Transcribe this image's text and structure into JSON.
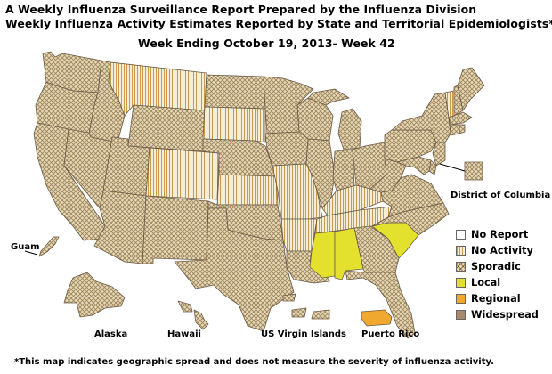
{
  "header": {
    "line1": "A Weekly Influenza Surveillance Report Prepared by the Influenza Division",
    "line2": "Weekly Influenza Activity Estimates Reported by State and Territorial Epidemiologists*",
    "week": "Week Ending October 19, 2013- Week 42"
  },
  "colors": {
    "no_report": "#ffffff",
    "no_activity": "#d7c9a3",
    "sporadic": "#d7c9a3",
    "local": "#e3e12e",
    "regional": "#f0a830",
    "widespread": "#a8896a",
    "border": "#5a4a3a"
  },
  "legend": [
    {
      "key": "no_report",
      "label": "No Report"
    },
    {
      "key": "no_activity",
      "label": "No Activity"
    },
    {
      "key": "sporadic",
      "label": "Sporadic"
    },
    {
      "key": "local",
      "label": "Local"
    },
    {
      "key": "regional",
      "label": "Regional"
    },
    {
      "key": "widespread",
      "label": "Widespread"
    }
  ],
  "states": {
    "WA": "sporadic",
    "OR": "sporadic",
    "CA": "sporadic",
    "NV": "sporadic",
    "ID": "sporadic",
    "MT": "no_activity",
    "WY": "sporadic",
    "UT": "sporadic",
    "AZ": "sporadic",
    "CO": "no_activity",
    "NM": "sporadic",
    "ND": "sporadic",
    "SD": "no_activity",
    "NE": "sporadic",
    "KS": "no_activity",
    "OK": "sporadic",
    "TX": "sporadic",
    "MN": "sporadic",
    "IA": "sporadic",
    "MO": "no_activity",
    "AR": "no_activity",
    "LA": "sporadic",
    "WI": "sporadic",
    "IL": "sporadic",
    "MI": "sporadic",
    "IN": "sporadic",
    "OH": "sporadic",
    "KY": "no_activity",
    "TN": "no_activity",
    "MS": "local",
    "AL": "local",
    "GA": "sporadic",
    "FL": "sporadic",
    "SC": "local",
    "NC": "sporadic",
    "VA": "sporadic",
    "WV": "sporadic",
    "PA": "sporadic",
    "NY": "sporadic",
    "VT": "no_activity",
    "NH": "sporadic",
    "ME": "sporadic",
    "MA": "sporadic",
    "CT": "sporadic",
    "RI": "sporadic",
    "NJ": "sporadic",
    "DE": "sporadic",
    "MD": "sporadic",
    "DC": "sporadic",
    "AK": "sporadic",
    "HI": "sporadic",
    "GU": "sporadic",
    "VI": "sporadic",
    "PR": "regional"
  },
  "territory_labels": {
    "dc": "District of Columbia",
    "guam": "Guam",
    "alaska": "Alaska",
    "hawaii": "Hawaii",
    "virgin_islands": "US Virgin Islands",
    "puerto_rico": "Puerto Rico"
  },
  "footnote": "*This map indicates geographic spread and does not measure the severity of influenza activity."
}
